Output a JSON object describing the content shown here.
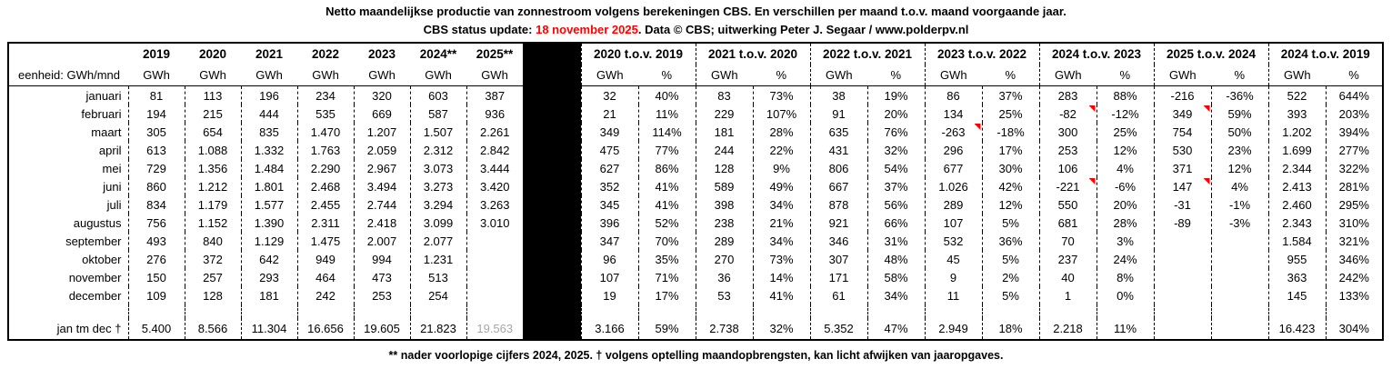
{
  "title": "Netto maandelijkse productie van zonnestroom volgens berekeningen CBS. En verschillen per maand t.o.v. maand voorgaande jaar.",
  "subtitle": {
    "prefix": "CBS status update: ",
    "date": "18 november 2025",
    "suffix": ". Data © CBS; uitwerking Peter J. Segaar / www.polderpv.nl"
  },
  "footnote": "** nader voorlopige cijfers 2024, 2025.  † volgens optelling maandopbrengsten, kan licht afwijken van jaaropgaves.",
  "colors": {
    "date_red": "#ff0000",
    "marker_red": "#ff0000",
    "provisional_gray": "#a6a6a6"
  },
  "chart_data": {
    "type": "table",
    "unit_label": "eenheid: GWh/mnd",
    "year_columns": [
      "2019",
      "2020",
      "2021",
      "2022",
      "2023",
      "2024**",
      "2025**"
    ],
    "year_subheader": "GWh",
    "comparison_groups": [
      "2020 t.o.v. 2019",
      "2021 t.o.v. 2020",
      "2022 t.o.v. 2021",
      "2023 t.o.v. 2022",
      "2024 t.o.v. 2023",
      "2025 t.o.v. 2024",
      "2024 t.o.v. 2019"
    ],
    "comparison_subheaders": [
      "GWh",
      "%"
    ],
    "rows": [
      {
        "label": "januari",
        "years": [
          "81",
          "113",
          "196",
          "234",
          "320",
          "603",
          "387"
        ],
        "comparisons": [
          "32",
          "40%",
          "83",
          "73%",
          "38",
          "19%",
          "86",
          "37%",
          "283",
          "88%",
          "-216",
          "-36%",
          "522",
          "644%"
        ],
        "markers": []
      },
      {
        "label": "februari",
        "years": [
          "194",
          "215",
          "444",
          "535",
          "669",
          "587",
          "936"
        ],
        "comparisons": [
          "21",
          "11%",
          "229",
          "107%",
          "91",
          "20%",
          "134",
          "25%",
          "-82",
          "-12%",
          "349",
          "59%",
          "393",
          "203%"
        ],
        "markers": [
          8,
          10
        ]
      },
      {
        "label": "maart",
        "years": [
          "305",
          "654",
          "835",
          "1.470",
          "1.207",
          "1.507",
          "2.261"
        ],
        "comparisons": [
          "349",
          "114%",
          "181",
          "28%",
          "635",
          "76%",
          "-263",
          "-18%",
          "300",
          "25%",
          "754",
          "50%",
          "1.202",
          "394%"
        ],
        "markers": [
          6
        ]
      },
      {
        "label": "april",
        "years": [
          "613",
          "1.088",
          "1.332",
          "1.763",
          "2.059",
          "2.312",
          "2.842"
        ],
        "comparisons": [
          "475",
          "77%",
          "244",
          "22%",
          "431",
          "32%",
          "296",
          "17%",
          "253",
          "12%",
          "530",
          "23%",
          "1.699",
          "277%"
        ],
        "markers": []
      },
      {
        "label": "mei",
        "years": [
          "729",
          "1.356",
          "1.484",
          "2.290",
          "2.967",
          "3.073",
          "3.444"
        ],
        "comparisons": [
          "627",
          "86%",
          "128",
          "9%",
          "806",
          "54%",
          "677",
          "30%",
          "106",
          "4%",
          "371",
          "12%",
          "2.344",
          "322%"
        ],
        "markers": []
      },
      {
        "label": "juni",
        "years": [
          "860",
          "1.212",
          "1.801",
          "2.468",
          "3.494",
          "3.273",
          "3.420"
        ],
        "comparisons": [
          "352",
          "41%",
          "589",
          "49%",
          "667",
          "37%",
          "1.026",
          "42%",
          "-221",
          "-6%",
          "147",
          "4%",
          "2.413",
          "281%"
        ],
        "markers": [
          8,
          10
        ]
      },
      {
        "label": "juli",
        "years": [
          "834",
          "1.179",
          "1.577",
          "2.455",
          "2.744",
          "3.294",
          "3.263"
        ],
        "comparisons": [
          "345",
          "41%",
          "398",
          "34%",
          "878",
          "56%",
          "289",
          "12%",
          "550",
          "20%",
          "-31",
          "-1%",
          "2.460",
          "295%"
        ],
        "markers": []
      },
      {
        "label": "augustus",
        "years": [
          "756",
          "1.152",
          "1.390",
          "2.311",
          "2.418",
          "3.099",
          "3.010"
        ],
        "comparisons": [
          "396",
          "52%",
          "238",
          "21%",
          "921",
          "66%",
          "107",
          "5%",
          "681",
          "28%",
          "-89",
          "-3%",
          "2.343",
          "310%"
        ],
        "markers": []
      },
      {
        "label": "september",
        "years": [
          "493",
          "840",
          "1.129",
          "1.475",
          "2.007",
          "2.077",
          ""
        ],
        "comparisons": [
          "347",
          "70%",
          "289",
          "34%",
          "346",
          "31%",
          "532",
          "36%",
          "70",
          "3%",
          "",
          "",
          "1.584",
          "321%"
        ],
        "markers": []
      },
      {
        "label": "oktober",
        "years": [
          "276",
          "372",
          "642",
          "949",
          "994",
          "1.231",
          ""
        ],
        "comparisons": [
          "96",
          "35%",
          "270",
          "73%",
          "307",
          "48%",
          "45",
          "5%",
          "237",
          "24%",
          "",
          "",
          "955",
          "346%"
        ],
        "markers": []
      },
      {
        "label": "november",
        "years": [
          "150",
          "257",
          "293",
          "464",
          "473",
          "513",
          ""
        ],
        "comparisons": [
          "107",
          "71%",
          "36",
          "14%",
          "171",
          "58%",
          "9",
          "2%",
          "40",
          "8%",
          "",
          "",
          "363",
          "242%"
        ],
        "markers": []
      },
      {
        "label": "december",
        "years": [
          "109",
          "128",
          "181",
          "242",
          "253",
          "254",
          ""
        ],
        "comparisons": [
          "19",
          "17%",
          "53",
          "41%",
          "61",
          "34%",
          "11",
          "5%",
          "1",
          "0%",
          "",
          "",
          "145",
          "133%"
        ],
        "markers": []
      }
    ],
    "total_row": {
      "label": "jan tm dec †",
      "years": [
        "5.400",
        "8.566",
        "11.304",
        "16.656",
        "19.605",
        "21.823",
        "19.563"
      ],
      "gray_year_indices": [
        6
      ],
      "comparisons": [
        "3.166",
        "59%",
        "2.738",
        "32%",
        "5.352",
        "47%",
        "2.949",
        "18%",
        "2.218",
        "11%",
        "",
        "",
        "16.423",
        "304%"
      ],
      "markers": []
    }
  }
}
